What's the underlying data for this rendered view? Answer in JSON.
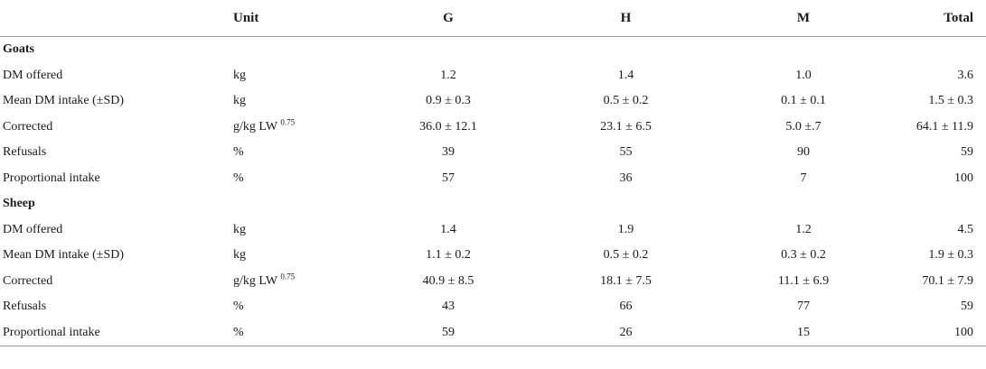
{
  "header": {
    "label": "",
    "unit": "Unit",
    "g": "G",
    "h": "H",
    "m": "M",
    "total": "Total"
  },
  "groups": [
    {
      "name": "Goats",
      "rows": [
        {
          "label": "DM offered",
          "unit": "kg",
          "unit_sup": "",
          "g": "1.2",
          "h": "1.4",
          "m": "1.0",
          "total": "3.6"
        },
        {
          "label": "Mean DM intake (±SD)",
          "unit": "kg",
          "unit_sup": "",
          "g": "0.9 ± 0.3",
          "h": "0.5 ± 0.2",
          "m": "0.1 ± 0.1",
          "total": "1.5 ± 0.3"
        },
        {
          "label": "Corrected",
          "unit": "g/kg LW ",
          "unit_sup": "0.75",
          "g": "36.0 ± 12.1",
          "h": "23.1 ± 6.5",
          "m": "5.0 ±.7",
          "total": "64.1 ± 11.9"
        },
        {
          "label": "Refusals",
          "unit": "%",
          "unit_sup": "",
          "g": "39",
          "h": "55",
          "m": "90",
          "total": "59"
        },
        {
          "label": "Proportional intake",
          "unit": "%",
          "unit_sup": "",
          "g": "57",
          "h": "36",
          "m": "7",
          "total": "100"
        }
      ]
    },
    {
      "name": "Sheep",
      "rows": [
        {
          "label": "DM offered",
          "unit": "kg",
          "unit_sup": "",
          "g": "1.4",
          "h": "1.9",
          "m": "1.2",
          "total": "4.5"
        },
        {
          "label": "Mean DM intake (±SD)",
          "unit": "kg",
          "unit_sup": "",
          "g": "1.1 ± 0.2",
          "h": "0.5 ± 0.2",
          "m": "0.3 ± 0.2",
          "total": "1.9 ± 0.3"
        },
        {
          "label": "Corrected",
          "unit": "g/kg LW ",
          "unit_sup": "0.75",
          "g": "40.9 ± 8.5",
          "h": "18.1 ± 7.5",
          "m": "11.1 ± 6.9",
          "total": "70.1 ± 7.9"
        },
        {
          "label": "Refusals",
          "unit": "%",
          "unit_sup": "",
          "g": "43",
          "h": "66",
          "m": "77",
          "total": "59"
        },
        {
          "label": "Proportional intake",
          "unit": "%",
          "unit_sup": "",
          "g": "59",
          "h": "26",
          "m": "15",
          "total": "100"
        }
      ]
    }
  ]
}
